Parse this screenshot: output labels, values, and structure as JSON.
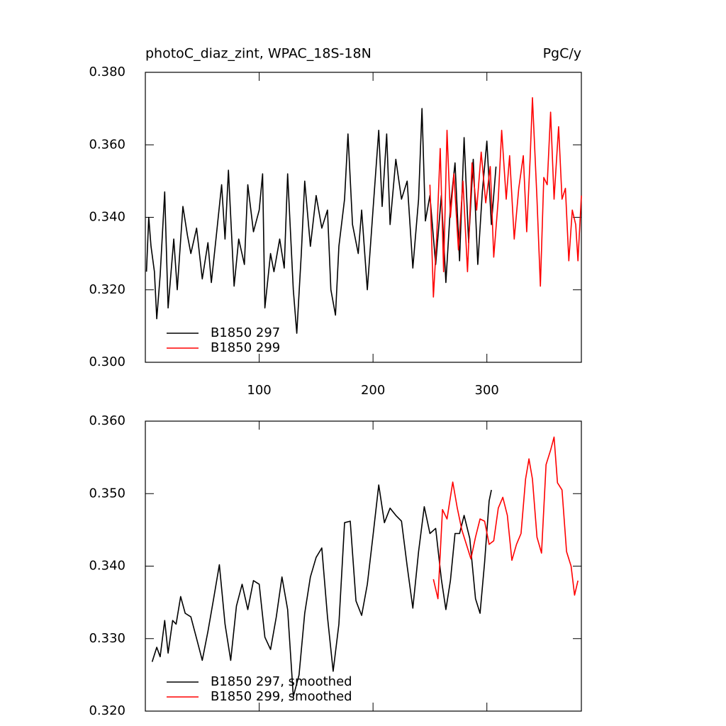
{
  "chart_data": [
    {
      "type": "line",
      "title": "photoC_diaz_zint, WPAC_18S-18N",
      "right_title": "PgC/y",
      "xlim": [
        0,
        383
      ],
      "xticks": [
        100,
        200,
        300
      ],
      "ylim": [
        0.3,
        0.38
      ],
      "yticks": [
        {
          "value": 0.3,
          "label": "0.300"
        },
        {
          "value": 0.32,
          "label": "0.320"
        },
        {
          "value": 0.34,
          "label": "0.340"
        },
        {
          "value": 0.36,
          "label": "0.360"
        },
        {
          "value": 0.38,
          "label": "0.380"
        }
      ],
      "series": [
        {
          "name": "B1850 297",
          "color": "#000000",
          "x": [
            1,
            3,
            5,
            8,
            10,
            13,
            17,
            20,
            25,
            28,
            33,
            37,
            40,
            45,
            50,
            55,
            58,
            62,
            67,
            70,
            73,
            78,
            82,
            87,
            90,
            95,
            100,
            103,
            105,
            110,
            113,
            118,
            122,
            125,
            130,
            133,
            137,
            140,
            145,
            150,
            155,
            160,
            163,
            167,
            170,
            175,
            178,
            182,
            187,
            190,
            195,
            200,
            205,
            208,
            212,
            215,
            220,
            225,
            230,
            235,
            240,
            243,
            246,
            250,
            255,
            260,
            264,
            268,
            272,
            276,
            280,
            284,
            288,
            292,
            296,
            300,
            304,
            308
          ],
          "values": [
            0.325,
            0.34,
            0.332,
            0.325,
            0.312,
            0.324,
            0.347,
            0.315,
            0.334,
            0.32,
            0.343,
            0.335,
            0.33,
            0.337,
            0.323,
            0.333,
            0.322,
            0.334,
            0.349,
            0.334,
            0.353,
            0.321,
            0.334,
            0.327,
            0.349,
            0.336,
            0.342,
            0.352,
            0.315,
            0.33,
            0.325,
            0.334,
            0.326,
            0.352,
            0.32,
            0.308,
            0.33,
            0.35,
            0.332,
            0.346,
            0.337,
            0.342,
            0.32,
            0.313,
            0.332,
            0.345,
            0.363,
            0.338,
            0.33,
            0.342,
            0.32,
            0.342,
            0.364,
            0.343,
            0.363,
            0.338,
            0.356,
            0.345,
            0.35,
            0.326,
            0.345,
            0.37,
            0.339,
            0.346,
            0.327,
            0.346,
            0.322,
            0.343,
            0.355,
            0.328,
            0.362,
            0.333,
            0.356,
            0.327,
            0.347,
            0.361,
            0.338,
            0.354
          ]
        },
        {
          "name": "B1850 299",
          "color": "#ff0000",
          "x": [
            250,
            253,
            256,
            259,
            262,
            265,
            268,
            271,
            275,
            279,
            283,
            287,
            291,
            295,
            299,
            303,
            306,
            310,
            313,
            317,
            320,
            324,
            328,
            332,
            335,
            338,
            340,
            344,
            347,
            350,
            353,
            356,
            359,
            363,
            366,
            369,
            372,
            375,
            378,
            380,
            383
          ],
          "values": [
            0.349,
            0.318,
            0.335,
            0.359,
            0.325,
            0.364,
            0.34,
            0.352,
            0.331,
            0.35,
            0.325,
            0.355,
            0.342,
            0.358,
            0.344,
            0.354,
            0.329,
            0.345,
            0.364,
            0.345,
            0.357,
            0.334,
            0.348,
            0.357,
            0.336,
            0.356,
            0.373,
            0.345,
            0.321,
            0.351,
            0.349,
            0.369,
            0.345,
            0.365,
            0.345,
            0.348,
            0.328,
            0.342,
            0.338,
            0.328,
            0.346
          ]
        }
      ]
    },
    {
      "type": "line",
      "xlim": [
        0,
        383
      ],
      "ylim": [
        0.32,
        0.36
      ],
      "yticks": [
        {
          "value": 0.32,
          "label": "0.320"
        },
        {
          "value": 0.33,
          "label": "0.330"
        },
        {
          "value": 0.34,
          "label": "0.340"
        },
        {
          "value": 0.35,
          "label": "0.350"
        },
        {
          "value": 0.36,
          "label": "0.360"
        }
      ],
      "series": [
        {
          "name": "B1850 297, smoothed",
          "color": "#000000",
          "x": [
            6,
            10,
            13,
            17,
            20,
            24,
            27,
            31,
            35,
            40,
            45,
            50,
            55,
            60,
            65,
            70,
            75,
            80,
            85,
            90,
            95,
            100,
            105,
            110,
            115,
            120,
            125,
            130,
            135,
            140,
            145,
            150,
            155,
            160,
            165,
            170,
            175,
            180,
            185,
            190,
            195,
            200,
            205,
            210,
            215,
            220,
            225,
            230,
            235,
            240,
            245,
            250,
            255,
            260,
            264,
            268,
            272,
            276,
            280,
            285,
            290,
            294,
            298,
            302,
            304
          ],
          "values": [
            0.3268,
            0.3288,
            0.3275,
            0.3325,
            0.328,
            0.3325,
            0.332,
            0.3358,
            0.3335,
            0.333,
            0.33,
            0.327,
            0.331,
            0.3355,
            0.3402,
            0.332,
            0.327,
            0.3345,
            0.3375,
            0.334,
            0.338,
            0.3375,
            0.3302,
            0.3285,
            0.333,
            0.3385,
            0.334,
            0.322,
            0.325,
            0.3335,
            0.3385,
            0.3412,
            0.3425,
            0.333,
            0.3255,
            0.332,
            0.346,
            0.3462,
            0.3352,
            0.3332,
            0.3375,
            0.3442,
            0.3512,
            0.346,
            0.348,
            0.347,
            0.3462,
            0.34,
            0.3342,
            0.342,
            0.3482,
            0.3445,
            0.3452,
            0.3382,
            0.334,
            0.338,
            0.3445,
            0.3445,
            0.347,
            0.3438,
            0.3355,
            0.3335,
            0.3405,
            0.349,
            0.3505
          ]
        },
        {
          "name": "B1850 299, smoothed",
          "color": "#ff0000",
          "x": [
            253,
            257,
            261,
            265,
            270,
            274,
            278,
            282,
            286,
            290,
            294,
            298,
            302,
            306,
            310,
            314,
            318,
            322,
            326,
            330,
            334,
            337,
            340,
            344,
            348,
            352,
            356,
            359,
            362,
            366,
            370,
            374,
            377,
            380
          ],
          "values": [
            0.3382,
            0.3355,
            0.3478,
            0.3465,
            0.3516,
            0.348,
            0.345,
            0.343,
            0.341,
            0.344,
            0.3465,
            0.3462,
            0.343,
            0.3435,
            0.348,
            0.3495,
            0.347,
            0.3408,
            0.343,
            0.3445,
            0.352,
            0.3548,
            0.352,
            0.344,
            0.3418,
            0.354,
            0.356,
            0.3578,
            0.3515,
            0.3505,
            0.342,
            0.34,
            0.336,
            0.338
          ]
        }
      ]
    }
  ]
}
